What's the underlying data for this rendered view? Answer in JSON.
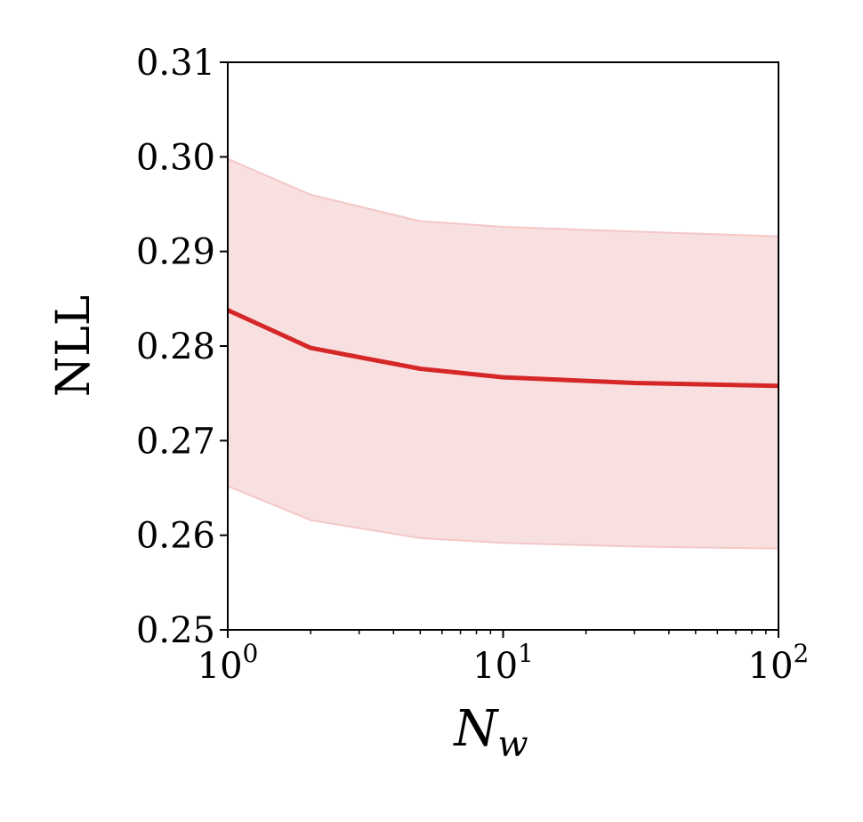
{
  "chart_data": {
    "type": "line",
    "xlabel": "N",
    "xlabel_subscript": "w",
    "ylabel": "NLL",
    "xscale": "log",
    "xlim": [
      1,
      100
    ],
    "ylim": [
      0.25,
      0.31
    ],
    "grid": false,
    "x_ticks": [
      {
        "value": 1,
        "base": "10",
        "exp": "0"
      },
      {
        "value": 10,
        "base": "10",
        "exp": "1"
      },
      {
        "value": 100,
        "base": "10",
        "exp": "2"
      }
    ],
    "y_ticks": [
      {
        "value": 0.25,
        "label": "0.25"
      },
      {
        "value": 0.26,
        "label": "0.26"
      },
      {
        "value": 0.27,
        "label": "0.27"
      },
      {
        "value": 0.28,
        "label": "0.28"
      },
      {
        "value": 0.29,
        "label": "0.29"
      },
      {
        "value": 0.3,
        "label": "0.30"
      },
      {
        "value": 0.31,
        "label": "0.31"
      }
    ],
    "series": [
      {
        "color": "#d62728",
        "band_color": "#f4c7c7",
        "x": [
          1,
          2,
          5,
          10,
          30,
          100
        ],
        "y": [
          0.2838,
          0.2798,
          0.2776,
          0.2767,
          0.2761,
          0.2758
        ],
        "upper": [
          0.2998,
          0.296,
          0.2932,
          0.2926,
          0.2921,
          0.2916
        ],
        "lower": [
          0.2652,
          0.2616,
          0.2597,
          0.2592,
          0.2588,
          0.2586
        ]
      }
    ]
  }
}
